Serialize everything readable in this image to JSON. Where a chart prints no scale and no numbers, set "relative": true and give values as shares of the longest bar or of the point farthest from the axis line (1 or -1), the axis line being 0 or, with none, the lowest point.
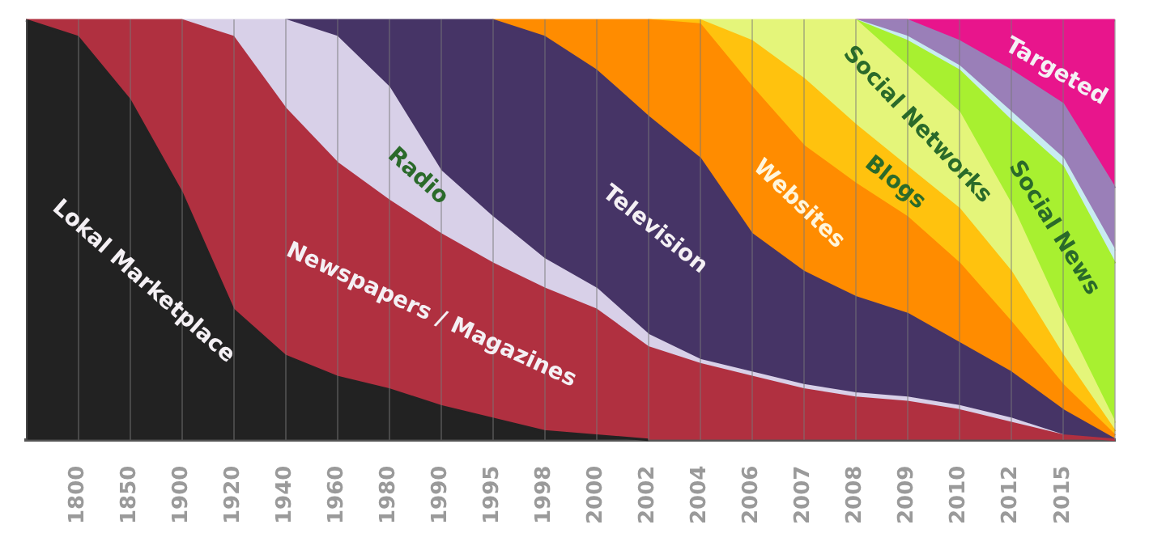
{
  "chart_data": {
    "type": "area",
    "stacked": true,
    "relative": true,
    "grid": "x",
    "legend": false,
    "categories": [
      null,
      "1800",
      "1850",
      "1900",
      "1920",
      "1940",
      "1960",
      "1980",
      "1990",
      "1995",
      "1998",
      "2000",
      "2002",
      "2004",
      "2006",
      "2007",
      "2008",
      "2009",
      "2010",
      "2012",
      "2015",
      null
    ],
    "series": [
      {
        "name": "Lokal Marketplace",
        "color": "#222222",
        "values": [
          1,
          0.96,
          0.81,
          0.59,
          0.31,
          0.2,
          0.15,
          0.12,
          0.08,
          0.05,
          0.02,
          0.01,
          0,
          null,
          null,
          null,
          null,
          null,
          null,
          null,
          null,
          null
        ]
      },
      {
        "name": "Newspapers / Magazines",
        "color": "#b03040",
        "values": [
          0,
          0.04,
          0.19,
          0.41,
          0.65,
          0.59,
          0.51,
          0.45,
          0.41,
          0.37,
          0.34,
          0.3,
          0.22,
          0.18,
          0.15,
          0.12,
          0.1,
          0.09,
          0.07,
          0.04,
          0.01,
          0
        ]
      },
      {
        "name": "Radio",
        "color": "#d8d0e8",
        "values": [
          null,
          null,
          null,
          0,
          0.04,
          0.21,
          0.3,
          0.27,
          0.15,
          0.11,
          0.07,
          0.05,
          0.03,
          0.01,
          0.01,
          0.01,
          0.01,
          0.01,
          0.01,
          0.01,
          0,
          null
        ]
      },
      {
        "name": "Television",
        "color": "#463466",
        "values": [
          null,
          null,
          null,
          null,
          null,
          0,
          0.04,
          0.16,
          0.36,
          0.47,
          0.53,
          0.52,
          0.52,
          0.48,
          0.33,
          0.27,
          0.23,
          0.2,
          0.15,
          0.11,
          0.06,
          0
        ]
      },
      {
        "name": "Websites",
        "color": "#ff8c00",
        "values": [
          null,
          null,
          null,
          null,
          null,
          null,
          null,
          null,
          null,
          0,
          0.04,
          0.12,
          0.23,
          0.32,
          0.35,
          0.3,
          0.27,
          0.23,
          0.19,
          0.12,
          0.06,
          0.01
        ]
      },
      {
        "name": "Blogs",
        "color": "#ffc20e",
        "values": [
          null,
          null,
          null,
          null,
          null,
          null,
          null,
          null,
          null,
          null,
          null,
          null,
          0,
          0.01,
          0.11,
          0.16,
          0.14,
          0.12,
          0.13,
          0.12,
          0.07,
          0.01
        ]
      },
      {
        "name": "Social Networks",
        "color": "#e4f57a",
        "values": [
          null,
          null,
          null,
          null,
          null,
          null,
          null,
          null,
          null,
          null,
          null,
          null,
          null,
          0,
          0.05,
          0.14,
          0.25,
          0.24,
          0.23,
          0.16,
          0.09,
          0.02
        ]
      },
      {
        "name": "Social News",
        "color": "#a8f030",
        "values": [
          null,
          null,
          null,
          null,
          null,
          null,
          null,
          null,
          null,
          null,
          null,
          null,
          null,
          null,
          null,
          null,
          0,
          0.06,
          0.1,
          0.2,
          0.36,
          0.38
        ]
      },
      {
        "color": "#c8ecf0",
        "values": [
          null,
          null,
          null,
          null,
          null,
          null,
          null,
          null,
          null,
          null,
          null,
          null,
          null,
          null,
          null,
          null,
          0,
          0.01,
          0.01,
          0.02,
          0.02,
          0.03
        ]
      },
      {
        "color": "#9a7fb8",
        "values": [
          null,
          null,
          null,
          null,
          null,
          null,
          null,
          null,
          null,
          null,
          null,
          null,
          null,
          null,
          null,
          null,
          0,
          0.04,
          0.06,
          0.1,
          0.13,
          0.15
        ]
      },
      {
        "name": "Targeted",
        "color": "#e8158c",
        "values": [
          null,
          null,
          null,
          null,
          null,
          null,
          null,
          null,
          null,
          null,
          null,
          null,
          null,
          null,
          null,
          null,
          0,
          0,
          0.05,
          0.12,
          0.2,
          0.4
        ]
      }
    ]
  }
}
